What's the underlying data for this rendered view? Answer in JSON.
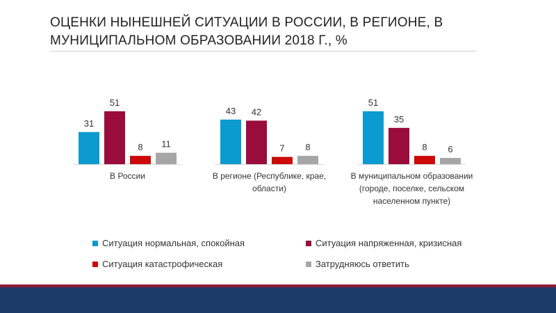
{
  "title": "ОЦЕНКИ НЫНЕШНЕЙ СИТУАЦИИ В РОССИИ, В РЕГИОНЕ, В МУНИЦИПАЛЬНОМ ОБРАЗОВАНИИ 2018 Г., %",
  "chart_data": {
    "type": "bar",
    "title": "ОЦЕНКИ НЫНЕШНЕЙ СИТУАЦИИ В РОССИИ, В РЕГИОНЕ, В МУНИЦИПАЛЬНОМ ОБРАЗОВАНИИ 2018 Г., %",
    "xlabel": "",
    "ylabel": "",
    "ylim": [
      0,
      51
    ],
    "grid": false,
    "legend_position": "bottom",
    "categories": [
      [
        "В России"
      ],
      [
        "В регионе (Республике, крае,",
        "области)"
      ],
      [
        "В муниципальном образовании",
        "(городе, поселке, сельском",
        "населенном пункте)"
      ]
    ],
    "series": [
      {
        "name": "Ситуация нормальная, спокойная",
        "color": "#0b9bd0",
        "values": [
          31,
          43,
          51
        ]
      },
      {
        "name": "Ситуация напряженная, кризисная",
        "color": "#9a0c3c",
        "values": [
          51,
          42,
          35
        ]
      },
      {
        "name": "Ситуация катастрофическая",
        "color": "#cc0a0a",
        "values": [
          8,
          7,
          8
        ]
      },
      {
        "name": "Затрудняюсь ответить",
        "color": "#a6a6a6",
        "values": [
          11,
          8,
          6
        ]
      }
    ]
  }
}
